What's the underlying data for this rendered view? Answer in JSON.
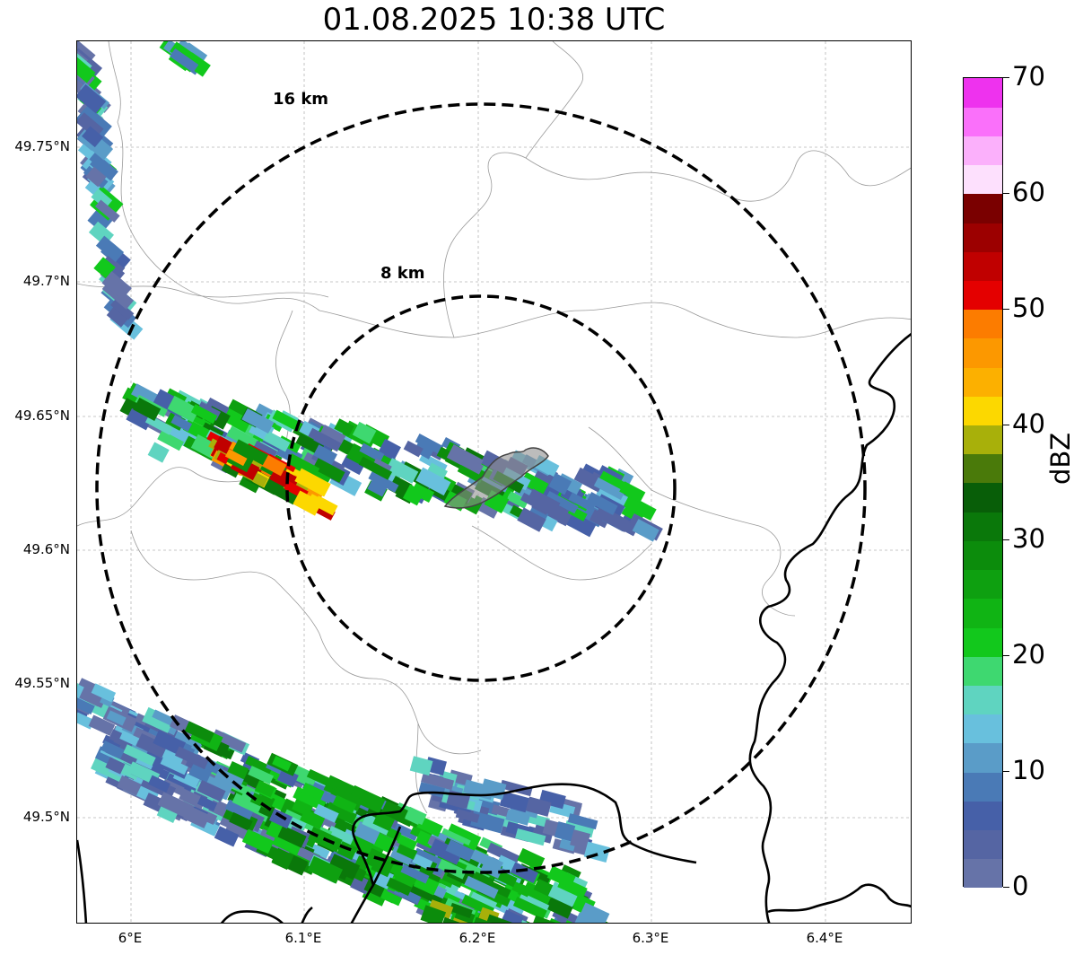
{
  "title": "01.08.2025 10:38 UTC",
  "map": {
    "lat_labels": [
      "49.75°N",
      "49.7°N",
      "49.65°N",
      "49.6°N",
      "49.55°N",
      "49.5°N"
    ],
    "lon_labels": [
      "6°E",
      "6.1°E",
      "6.2°E",
      "6.3°E",
      "6.4°E"
    ],
    "range_rings": [
      {
        "label": "16 km"
      },
      {
        "label": "8 km"
      }
    ],
    "colors": {
      "ring": "#000000",
      "border": "#000000",
      "admin_lines": "#9a9a9a",
      "gridlines": "#b5b5b5",
      "highlight_area": "#8f8f8f"
    }
  },
  "colorbar": {
    "label": "dBZ",
    "ticks": [
      "0",
      "10",
      "20",
      "30",
      "40",
      "50",
      "60",
      "70"
    ],
    "colors": [
      "#6673a8",
      "#5565a3",
      "#4660a8",
      "#4a7ab6",
      "#5a9cc8",
      "#68c0dd",
      "#5fd4c0",
      "#3ed870",
      "#12c81c",
      "#10b414",
      "#0ea010",
      "#0c8c0c",
      "#0a780a",
      "#085e08",
      "#4a7a0a",
      "#a8b00a",
      "#fcd800",
      "#fcb000",
      "#fc9800",
      "#fc7c00",
      "#e40000",
      "#c00000",
      "#9c0000",
      "#7a0000",
      "#fde0fd",
      "#fbb0fb",
      "#fa70fa",
      "#ee32ee"
    ]
  }
}
